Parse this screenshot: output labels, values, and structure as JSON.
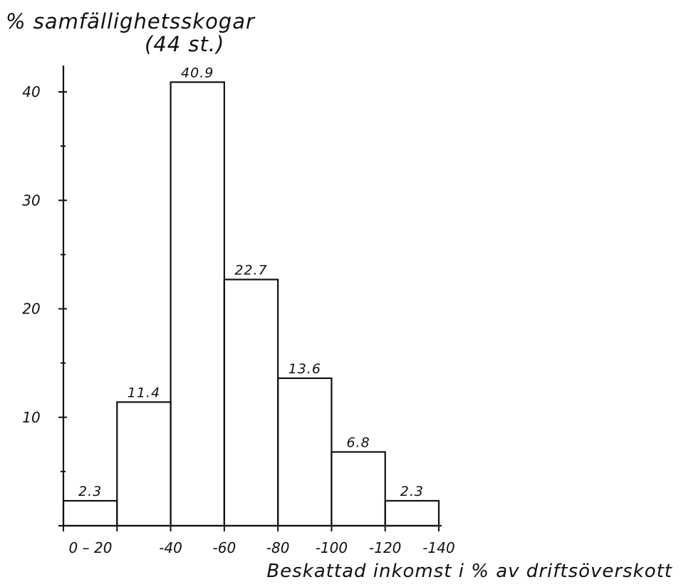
{
  "chart_data": {
    "type": "bar",
    "title": "% samfällighetsskogar",
    "subtitle": "(44 st.)",
    "xlabel": "Beskattad inkomst i % av driftsöverskott",
    "ylabel": "",
    "x_tick_labels": [
      "0 – 20",
      "-40",
      "-60",
      "-80",
      "-100",
      "-120",
      "-140"
    ],
    "bin_edges": [
      0,
      20,
      40,
      60,
      80,
      100,
      120,
      140
    ],
    "values": [
      2.3,
      11.4,
      40.9,
      22.7,
      13.6,
      6.8,
      2.3
    ],
    "value_labels": [
      "2.3",
      "11.4",
      "40.9",
      "22.7",
      "13.6",
      "6.8",
      "2.3"
    ],
    "y_ticks": [
      10,
      20,
      30,
      40
    ],
    "ylim": [
      0,
      42
    ],
    "xlim": [
      0,
      140
    ],
    "grid": false,
    "legend": "none"
  }
}
